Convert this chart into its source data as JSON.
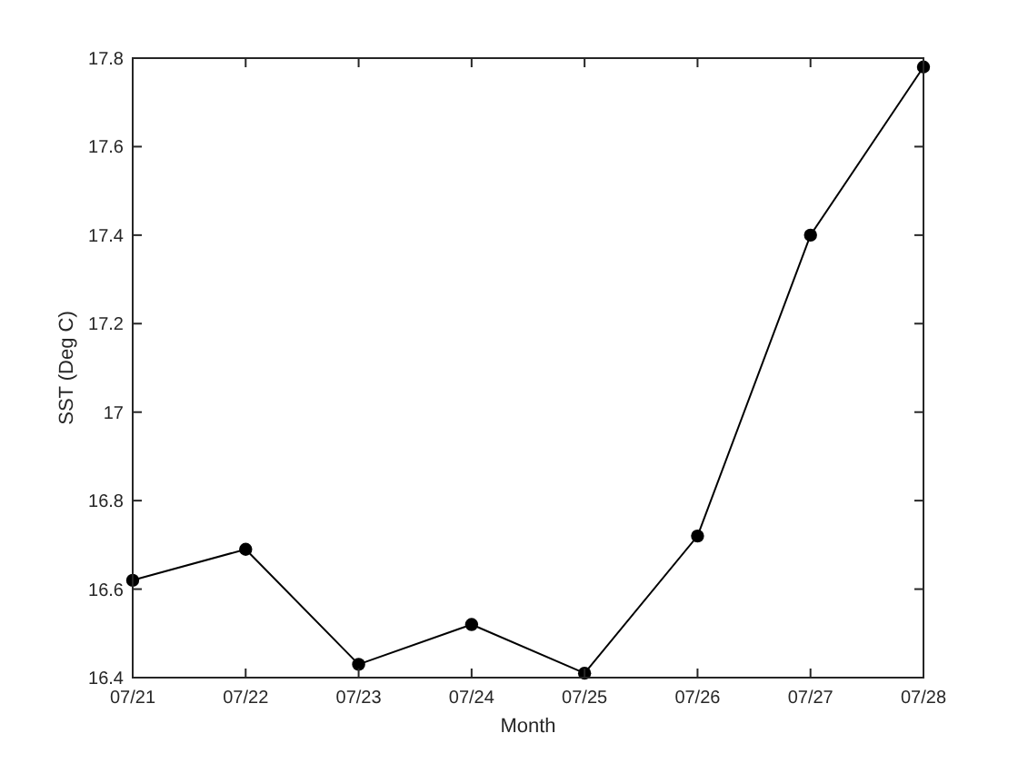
{
  "chart_data": {
    "type": "line",
    "xlabel": "Month",
    "ylabel": "SST (Deg C)",
    "categories": [
      "07/21",
      "07/22",
      "07/23",
      "07/24",
      "07/25",
      "07/26",
      "07/27",
      "07/28"
    ],
    "series": [
      {
        "color": "#000000",
        "values": [
          16.62,
          16.69,
          16.43,
          16.52,
          16.41,
          16.72,
          17.4,
          17.78
        ]
      }
    ],
    "ylim": [
      16.4,
      17.8
    ],
    "yticks": [
      16.4,
      16.6,
      16.8,
      17,
      17.2,
      17.4,
      17.6,
      17.8
    ],
    "marker": "circle",
    "line_style": "solid"
  }
}
